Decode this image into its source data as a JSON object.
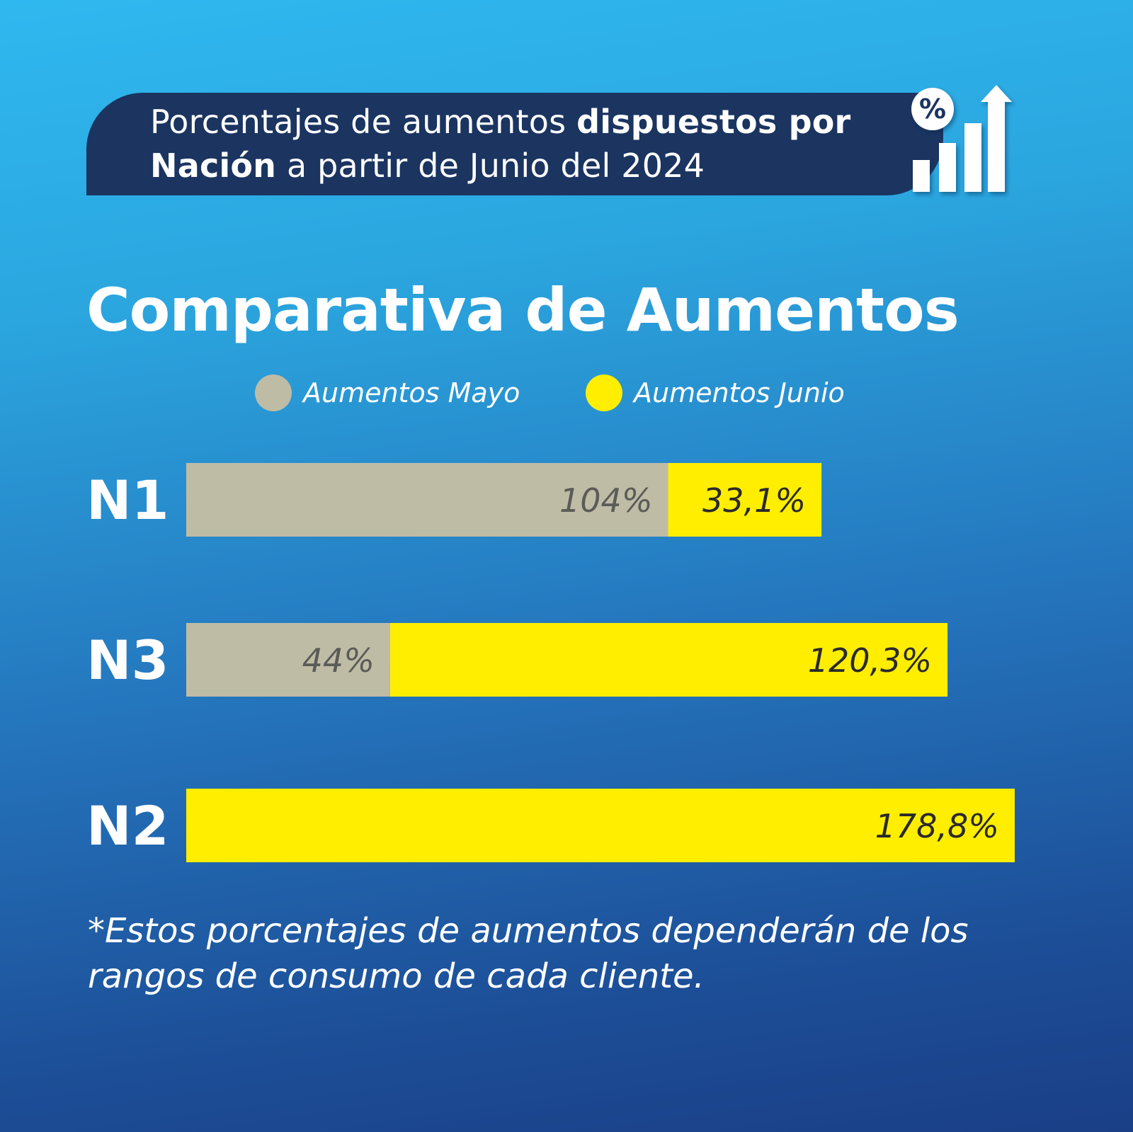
{
  "header": {
    "line1_regular": "Porcentajes de aumentos ",
    "line1_bold": "dispuestos por",
    "line2_bold": "Nación",
    "line2_regular": " a partir de Junio del 2024"
  },
  "icons": {
    "percent_badge": "percent-icon",
    "growth_chart": "bar-chart-arrow-icon",
    "percent_glyph": "%"
  },
  "colors": {
    "mayo": "#bfbca6",
    "junio": "#ffee00",
    "banner": "#1b3460",
    "mayo_label": "#5b5b58",
    "junio_label": "#2a2a2a"
  },
  "chart_data": {
    "type": "bar",
    "orientation": "horizontal",
    "stacked": true,
    "title": "Comparativa de Aumentos",
    "legend_position": "top",
    "categories": [
      "N1",
      "N3",
      "N2"
    ],
    "series": [
      {
        "name": "Aumentos Mayo",
        "values": [
          104,
          44,
          0
        ],
        "labels": [
          "104%",
          "44%",
          ""
        ]
      },
      {
        "name": "Aumentos Junio",
        "values": [
          33.1,
          120.3,
          178.8
        ],
        "labels": [
          "33,1%",
          "120,3%",
          "178,8%"
        ]
      }
    ],
    "xlim": [
      0,
      178.8
    ]
  },
  "footnote": "*Estos porcentajes de aumentos dependerán de los rangos de consumo de cada cliente."
}
